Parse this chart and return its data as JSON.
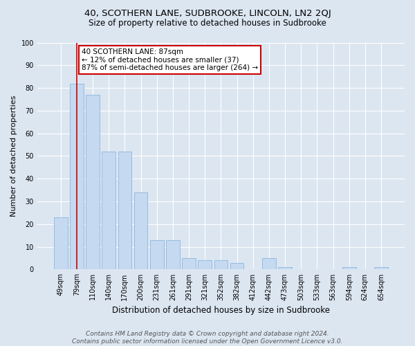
{
  "title": "40, SCOTHERN LANE, SUDBROOKE, LINCOLN, LN2 2QJ",
  "subtitle": "Size of property relative to detached houses in Sudbrooke",
  "xlabel": "Distribution of detached houses by size in Sudbrooke",
  "ylabel": "Number of detached properties",
  "categories": [
    "49sqm",
    "79sqm",
    "110sqm",
    "140sqm",
    "170sqm",
    "200sqm",
    "231sqm",
    "261sqm",
    "291sqm",
    "321sqm",
    "352sqm",
    "382sqm",
    "412sqm",
    "442sqm",
    "473sqm",
    "503sqm",
    "533sqm",
    "563sqm",
    "594sqm",
    "624sqm",
    "654sqm"
  ],
  "values": [
    23,
    82,
    77,
    52,
    52,
    34,
    13,
    13,
    5,
    4,
    4,
    3,
    0,
    5,
    1,
    0,
    0,
    0,
    1,
    0,
    1
  ],
  "bar_color": "#c5d9f1",
  "bar_edge_color": "#7dadd9",
  "background_color": "#dce6f1",
  "plot_bg_color": "#dce6f1",
  "grid_color": "#ffffff",
  "annotation_line1": "40 SCOTHERN LANE: 87sqm",
  "annotation_line2": "← 12% of detached houses are smaller (37)",
  "annotation_line3": "87% of semi-detached houses are larger (264) →",
  "annotation_box_color": "#ffffff",
  "annotation_box_edge": "#cc0000",
  "vline_x": 1.0,
  "vline_color": "#cc0000",
  "ylim": [
    0,
    100
  ],
  "yticks": [
    0,
    10,
    20,
    30,
    40,
    50,
    60,
    70,
    80,
    90,
    100
  ],
  "footer": "Contains HM Land Registry data © Crown copyright and database right 2024.\nContains public sector information licensed under the Open Government Licence v3.0.",
  "title_fontsize": 9.5,
  "subtitle_fontsize": 8.5,
  "ylabel_fontsize": 8,
  "xlabel_fontsize": 8.5,
  "tick_fontsize": 7,
  "annotation_fontsize": 7.5,
  "footer_fontsize": 6.5
}
